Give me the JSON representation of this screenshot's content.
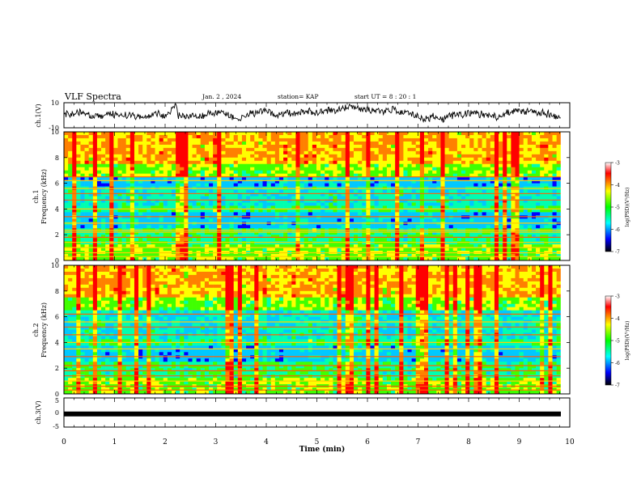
{
  "header": {
    "title": "VLF Spectra",
    "date": "Jan. 2 , 2024",
    "station": "station= KAP",
    "start": "start UT = 8 : 20 : 1"
  },
  "colorbar": {
    "label": "log(PSD)(V²/Hz)",
    "ticks": [
      "-3",
      "-4",
      "-5",
      "-6",
      "-7"
    ],
    "colors": [
      "#ffffff",
      "#ff0000",
      "#ffff00",
      "#00ff00",
      "#00ffff",
      "#0000ff",
      "#000000"
    ]
  },
  "chart_data": [
    {
      "type": "line",
      "ylabel": "ch.1(V)",
      "ylim": [
        -10,
        10
      ],
      "yticks": [
        "10",
        "-10"
      ],
      "xlim": [
        0,
        10
      ],
      "note": "noisy waveform trace, no labeled values"
    },
    {
      "type": "heatmap",
      "ylabel": "ch.1\nFrequency (kHz)",
      "ylim": [
        0,
        10
      ],
      "yticks": [
        "0",
        "2",
        "4",
        "6",
        "8",
        "10"
      ],
      "xlim": [
        0,
        9.82
      ],
      "band_freqs_khz": [
        0.3,
        0.6,
        1.0,
        1.4,
        1.8,
        2.2,
        2.35,
        2.9,
        3.4,
        4.0,
        4.7,
        5.2,
        5.6,
        6.2,
        6.5
      ]
    },
    {
      "type": "heatmap",
      "ylabel": "ch.2\nFrequency (kHz)",
      "ylim": [
        0,
        10
      ],
      "yticks": [
        "0",
        "2",
        "4",
        "6",
        "8",
        "10"
      ],
      "xlim": [
        0,
        9.82
      ],
      "band_freqs_khz": [
        0.3,
        0.6,
        1.0,
        1.4,
        1.8,
        2.2,
        2.9,
        3.5,
        4.0,
        4.6,
        5.2,
        5.6,
        6.2
      ]
    },
    {
      "type": "line",
      "ylabel": "ch.3(V)",
      "ylim": [
        -5,
        5
      ],
      "yticks": [
        "5",
        "0",
        "-5"
      ],
      "xlim": [
        0,
        10
      ],
      "values_level_v": -0.5,
      "note": "flat thick trace near 0 V"
    }
  ],
  "xaxis": {
    "label": "Time (min)",
    "ticks": [
      "0",
      "1",
      "2",
      "3",
      "4",
      "5",
      "6",
      "7",
      "8",
      "9",
      "10"
    ]
  }
}
